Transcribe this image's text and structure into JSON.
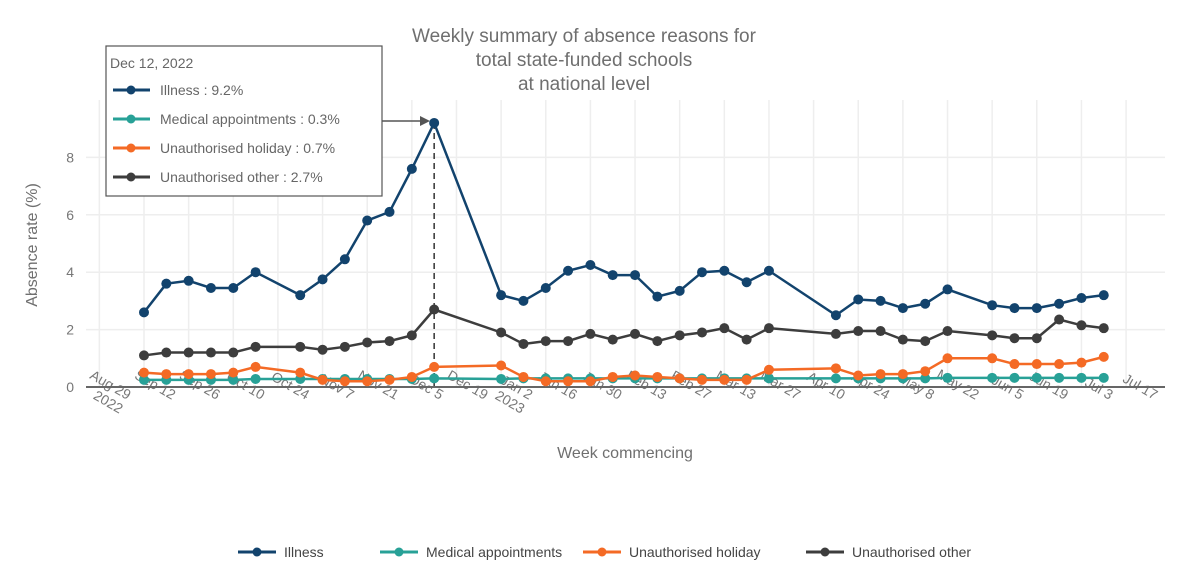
{
  "chart_data": {
    "type": "line",
    "title": [
      "Weekly summary of absence reasons for",
      "total state-funded schools",
      "at national level"
    ],
    "xlabel": "Week commencing",
    "ylabel": "Absence rate (%)",
    "ylim": [
      0,
      9.5
    ],
    "yticks": [
      "0",
      "2",
      "4",
      "6",
      "8"
    ],
    "xticks": [
      [
        "Aug 29",
        "2022"
      ],
      [
        "Sep 12"
      ],
      [
        "Sep 26"
      ],
      [
        "Oct 10"
      ],
      [
        "Oct 24"
      ],
      [
        "Nov 7"
      ],
      [
        "Nov 21"
      ],
      [
        "Dec 5"
      ],
      [
        "Dec 19"
      ],
      [
        "Jan 2",
        "2023"
      ],
      [
        "Jan 16"
      ],
      [
        "Jan 30"
      ],
      [
        "Feb 13"
      ],
      [
        "Feb 27"
      ],
      [
        "Mar 13"
      ],
      [
        "Mar 27"
      ],
      [
        "Apr 10"
      ],
      [
        "Apr 24"
      ],
      [
        "May 8"
      ],
      [
        "May 22"
      ],
      [
        "Jun 5"
      ],
      [
        "Jun 19"
      ],
      [
        "Jul 3"
      ],
      [
        "Jul 17"
      ]
    ],
    "grid": true,
    "legend_position": "bottom",
    "x": [
      "2022-09-12",
      "2022-09-19",
      "2022-09-26",
      "2022-10-03",
      "2022-10-10",
      "2022-10-17",
      "2022-10-31",
      "2022-11-07",
      "2022-11-14",
      "2022-11-21",
      "2022-11-28",
      "2022-12-05",
      "2022-12-12",
      "2023-01-02",
      "2023-01-09",
      "2023-01-16",
      "2023-01-23",
      "2023-01-30",
      "2023-02-06",
      "2023-02-13",
      "2023-02-20",
      "2023-02-27",
      "2023-03-06",
      "2023-03-13",
      "2023-03-20",
      "2023-03-27",
      "2023-04-17",
      "2023-04-24",
      "2023-05-01",
      "2023-05-08",
      "2023-05-15",
      "2023-05-22",
      "2023-06-05",
      "2023-06-12",
      "2023-06-19",
      "2023-06-26",
      "2023-07-03",
      "2023-07-10"
    ],
    "series": [
      {
        "name": "Illness",
        "color": "#12436d",
        "values": [
          2.6,
          3.6,
          3.7,
          3.45,
          3.45,
          4.0,
          3.2,
          3.75,
          4.45,
          5.8,
          6.1,
          7.6,
          9.2,
          3.2,
          3.0,
          3.45,
          4.05,
          4.25,
          3.9,
          3.9,
          3.15,
          3.35,
          4.0,
          4.05,
          3.65,
          4.05,
          2.5,
          3.05,
          3.0,
          2.75,
          2.9,
          3.4,
          2.85,
          2.75,
          2.75,
          2.9,
          3.1,
          3.2
        ]
      },
      {
        "name": "Medical appointments",
        "color": "#28a197",
        "values": [
          0.25,
          0.25,
          0.25,
          0.25,
          0.25,
          0.28,
          0.28,
          0.28,
          0.28,
          0.28,
          0.28,
          0.28,
          0.3,
          0.28,
          0.3,
          0.3,
          0.3,
          0.3,
          0.3,
          0.3,
          0.3,
          0.3,
          0.3,
          0.3,
          0.3,
          0.3,
          0.3,
          0.3,
          0.3,
          0.3,
          0.3,
          0.32,
          0.32,
          0.32,
          0.32,
          0.32,
          0.32,
          0.32
        ]
      },
      {
        "name": "Unauthorised holiday",
        "color": "#f46a25",
        "values": [
          0.5,
          0.45,
          0.45,
          0.45,
          0.5,
          0.7,
          0.5,
          0.25,
          0.2,
          0.2,
          0.25,
          0.35,
          0.7,
          0.75,
          0.35,
          0.2,
          0.2,
          0.2,
          0.35,
          0.4,
          0.35,
          0.3,
          0.25,
          0.25,
          0.25,
          0.6,
          0.65,
          0.4,
          0.45,
          0.45,
          0.55,
          1.0,
          1.0,
          0.8,
          0.8,
          0.8,
          0.85,
          1.05
        ]
      },
      {
        "name": "Unauthorised other",
        "color": "#3d3d3d",
        "values": [
          1.1,
          1.2,
          1.2,
          1.2,
          1.2,
          1.4,
          1.4,
          1.3,
          1.4,
          1.55,
          1.6,
          1.8,
          2.7,
          1.9,
          1.5,
          1.6,
          1.6,
          1.85,
          1.65,
          1.85,
          1.6,
          1.8,
          1.9,
          2.05,
          1.65,
          2.05,
          1.85,
          1.95,
          1.95,
          1.65,
          1.6,
          1.95,
          1.8,
          1.7,
          1.7,
          2.35,
          2.15,
          2.05
        ]
      }
    ],
    "tooltip": {
      "date": "Dec 12, 2022",
      "x": "2022-12-12",
      "items": [
        "Illness : 9.2%",
        "Medical appointments : 0.3%",
        "Unauthorised holiday : 0.7%",
        "Unauthorised other : 2.7%"
      ]
    }
  }
}
